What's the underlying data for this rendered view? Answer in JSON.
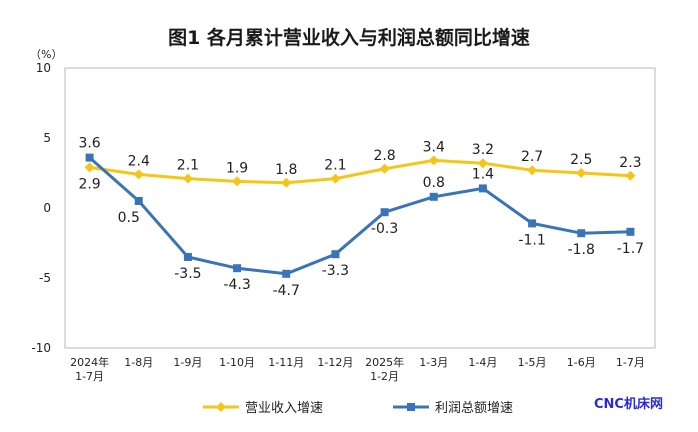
{
  "chart_data": {
    "type": "line",
    "title": "图1  各月累计营业收入与利润总额同比增速",
    "yunit": "（%）",
    "ylim": [
      -10,
      10
    ],
    "yticks": [
      "10",
      "5",
      "0",
      "-5",
      "-10"
    ],
    "categories": [
      [
        "2024年",
        "1-7月"
      ],
      [
        "1-8月"
      ],
      [
        "1-9月"
      ],
      [
        "1-10月"
      ],
      [
        "1-11月"
      ],
      [
        "1-12月"
      ],
      [
        "2025年",
        "1-2月"
      ],
      [
        "1-3月"
      ],
      [
        "1-4月"
      ],
      [
        "1-5月"
      ],
      [
        "1-6月"
      ],
      [
        "1-7月"
      ]
    ],
    "series": [
      {
        "name": "营业收入增速",
        "color": "#F5C518",
        "marker": "diamond",
        "values": [
          2.9,
          2.4,
          2.1,
          1.9,
          1.8,
          2.1,
          2.8,
          3.4,
          3.2,
          2.7,
          2.5,
          2.3
        ],
        "labels": [
          "2.9",
          "2.4",
          "2.1",
          "1.9",
          "1.8",
          "2.1",
          "2.8",
          "3.4",
          "3.2",
          "2.7",
          "2.5",
          "2.3"
        ]
      },
      {
        "name": "利润总额增速",
        "color": "#3A74B8",
        "marker": "square",
        "values": [
          3.6,
          0.5,
          -3.5,
          -4.3,
          -4.7,
          -3.3,
          -0.3,
          0.8,
          1.4,
          -1.1,
          -1.8,
          -1.7
        ],
        "labels": [
          "3.6",
          "0.5",
          "-3.5",
          "-4.3",
          "-4.7",
          "-3.3",
          "-0.3",
          "0.8",
          "1.4",
          "-1.1",
          "-1.8",
          "-1.7"
        ]
      }
    ],
    "legend": "bottom",
    "grid": false
  },
  "watermark": "CNC机床网"
}
